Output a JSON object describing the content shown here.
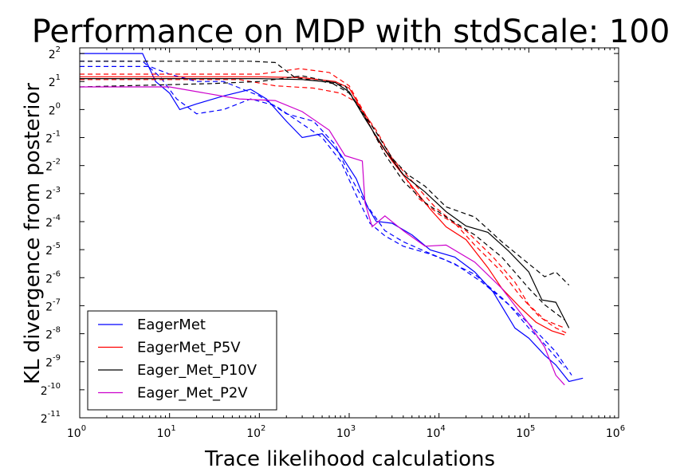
{
  "chart_data": {
    "type": "line",
    "title": "Performance on MDP with stdScale: 100",
    "xlabel": "Trace likelihood calculations",
    "ylabel": "KL divergence from posterior",
    "xscale": "log",
    "yscale": "log",
    "x_base": 10,
    "y_base": 2,
    "xlim": [
      1,
      1000000
    ],
    "ylim": [
      0.00048828125,
      4.6
    ],
    "x_ticks": [
      {
        "base": "10",
        "exp": "0",
        "value": 1
      },
      {
        "base": "10",
        "exp": "1",
        "value": 10
      },
      {
        "base": "10",
        "exp": "2",
        "value": 100
      },
      {
        "base": "10",
        "exp": "3",
        "value": 1000
      },
      {
        "base": "10",
        "exp": "4",
        "value": 10000
      },
      {
        "base": "10",
        "exp": "5",
        "value": 100000
      },
      {
        "base": "10",
        "exp": "6",
        "value": 1000000
      }
    ],
    "y_ticks": [
      {
        "base": "2",
        "exp": "-11",
        "value": 0.00048828125
      },
      {
        "base": "2",
        "exp": "-10",
        "value": 0.0009765625
      },
      {
        "base": "2",
        "exp": "-9",
        "value": 0.001953125
      },
      {
        "base": "2",
        "exp": "-8",
        "value": 0.00390625
      },
      {
        "base": "2",
        "exp": "-7",
        "value": 0.0078125
      },
      {
        "base": "2",
        "exp": "-6",
        "value": 0.015625
      },
      {
        "base": "2",
        "exp": "-5",
        "value": 0.03125
      },
      {
        "base": "2",
        "exp": "-4",
        "value": 0.0625
      },
      {
        "base": "2",
        "exp": "-3",
        "value": 0.125
      },
      {
        "base": "2",
        "exp": "-2",
        "value": 0.25
      },
      {
        "base": "2",
        "exp": "-1",
        "value": 0.5
      },
      {
        "base": "2",
        "exp": "0",
        "value": 1
      },
      {
        "base": "2",
        "exp": "1",
        "value": 2
      },
      {
        "base": "2",
        "exp": "2",
        "value": 4
      }
    ],
    "grid": false,
    "legend_position": "bottom-left",
    "series": [
      {
        "name": "EagerMet",
        "color": "#0000ff",
        "style": "solid",
        "points": [
          [
            1,
            4
          ],
          [
            5,
            4
          ],
          [
            7,
            2
          ],
          [
            10,
            1.5
          ],
          [
            13,
            1.0
          ],
          [
            20,
            1.15
          ],
          [
            40,
            1.4
          ],
          [
            80,
            1.65
          ],
          [
            120,
            1.3
          ],
          [
            200,
            0.75
          ],
          [
            300,
            0.5
          ],
          [
            500,
            0.55
          ],
          [
            800,
            0.33
          ],
          [
            1200,
            0.18
          ],
          [
            1600,
            0.09
          ],
          [
            2000,
            0.063
          ],
          [
            3000,
            0.06
          ],
          [
            5000,
            0.045
          ],
          [
            8000,
            0.031
          ],
          [
            15000,
            0.026
          ],
          [
            25000,
            0.018
          ],
          [
            40000,
            0.011
          ],
          [
            70000,
            0.0045
          ],
          [
            100000,
            0.0035
          ],
          [
            150000,
            0.0023
          ],
          [
            200000,
            0.0018
          ],
          [
            280000,
            0.0012
          ],
          [
            400000,
            0.0013
          ]
        ]
      },
      {
        "name": "",
        "color": "#0000ff",
        "style": "dashed",
        "points": [
          [
            1,
            3.3
          ],
          [
            5,
            3.3
          ],
          [
            8,
            2.2
          ],
          [
            12,
            1.3
          ],
          [
            20,
            0.9
          ],
          [
            40,
            1.0
          ],
          [
            80,
            1.3
          ],
          [
            150,
            1.1
          ],
          [
            300,
            0.7
          ],
          [
            500,
            0.5
          ],
          [
            800,
            0.28
          ],
          [
            1200,
            0.12
          ],
          [
            1700,
            0.06
          ],
          [
            2500,
            0.044
          ],
          [
            4000,
            0.034
          ],
          [
            8000,
            0.028
          ],
          [
            15000,
            0.022
          ],
          [
            30000,
            0.014
          ],
          [
            60000,
            0.008
          ],
          [
            100000,
            0.0045
          ],
          [
            150000,
            0.003
          ],
          [
            250000,
            0.0017
          ]
        ]
      },
      {
        "name": "",
        "color": "#0000ff",
        "style": "dashed",
        "points": [
          [
            1,
            2.9
          ],
          [
            6,
            2.9
          ],
          [
            10,
            2.4
          ],
          [
            20,
            2.0
          ],
          [
            40,
            2.0
          ],
          [
            100,
            1.4
          ],
          [
            200,
            0.9
          ],
          [
            400,
            0.75
          ],
          [
            700,
            0.42
          ],
          [
            1000,
            0.2
          ],
          [
            1500,
            0.1
          ],
          [
            2500,
            0.05
          ],
          [
            4000,
            0.038
          ],
          [
            7000,
            0.03
          ],
          [
            12000,
            0.024
          ],
          [
            25000,
            0.017
          ],
          [
            50000,
            0.0095
          ],
          [
            100000,
            0.005
          ],
          [
            200000,
            0.0025
          ],
          [
            300000,
            0.0014
          ]
        ]
      },
      {
        "name": "EagerMet_P5V",
        "color": "#ff0000",
        "style": "solid",
        "points": [
          [
            1,
            2.25
          ],
          [
            100,
            2.25
          ],
          [
            300,
            2.2
          ],
          [
            700,
            2.0
          ],
          [
            1000,
            1.7
          ],
          [
            1300,
            1.1
          ],
          [
            2000,
            0.5
          ],
          [
            3000,
            0.28
          ],
          [
            5000,
            0.15
          ],
          [
            8000,
            0.085
          ],
          [
            12000,
            0.055
          ],
          [
            20000,
            0.04
          ],
          [
            35000,
            0.02
          ],
          [
            50000,
            0.012
          ],
          [
            80000,
            0.0075
          ],
          [
            120000,
            0.0052
          ],
          [
            180000,
            0.0042
          ],
          [
            250000,
            0.0038
          ]
        ]
      },
      {
        "name": "",
        "color": "#ff0000",
        "style": "dashed",
        "points": [
          [
            1,
            2.4
          ],
          [
            100,
            2.4
          ],
          [
            280,
            2.75
          ],
          [
            600,
            2.5
          ],
          [
            1000,
            1.8
          ],
          [
            1500,
            0.9
          ],
          [
            2500,
            0.4
          ],
          [
            4000,
            0.2
          ],
          [
            6000,
            0.11
          ],
          [
            10000,
            0.075
          ],
          [
            20000,
            0.05
          ],
          [
            40000,
            0.026
          ],
          [
            70000,
            0.014
          ],
          [
            100000,
            0.008
          ],
          [
            150000,
            0.0055
          ],
          [
            250000,
            0.0045
          ]
        ]
      },
      {
        "name": "",
        "color": "#ff0000",
        "style": "dashed",
        "points": [
          [
            1,
            2.1
          ],
          [
            60,
            2.1
          ],
          [
            150,
            1.8
          ],
          [
            400,
            1.7
          ],
          [
            800,
            1.5
          ],
          [
            1200,
            1.2
          ],
          [
            2000,
            0.6
          ],
          [
            3000,
            0.3
          ],
          [
            5000,
            0.17
          ],
          [
            9000,
            0.09
          ],
          [
            15000,
            0.06
          ],
          [
            25000,
            0.035
          ],
          [
            50000,
            0.018
          ],
          [
            80000,
            0.01
          ],
          [
            130000,
            0.006
          ],
          [
            200000,
            0.0045
          ],
          [
            260000,
            0.004
          ]
        ]
      },
      {
        "name": "Eager_Met_P10V",
        "color": "#000000",
        "style": "solid",
        "points": [
          [
            1,
            2.15
          ],
          [
            100,
            2.15
          ],
          [
            300,
            2.1
          ],
          [
            700,
            1.95
          ],
          [
            1000,
            1.55
          ],
          [
            1500,
            0.8
          ],
          [
            2500,
            0.37
          ],
          [
            4000,
            0.2
          ],
          [
            7000,
            0.13
          ],
          [
            12000,
            0.08
          ],
          [
            20000,
            0.056
          ],
          [
            35000,
            0.048
          ],
          [
            60000,
            0.03
          ],
          [
            100000,
            0.018
          ],
          [
            140000,
            0.009
          ],
          [
            200000,
            0.0085
          ],
          [
            280000,
            0.0045
          ]
        ]
      },
      {
        "name": "",
        "color": "#000000",
        "style": "dashed",
        "points": [
          [
            1,
            3.3
          ],
          [
            80,
            3.3
          ],
          [
            150,
            3.2
          ],
          [
            250,
            2.2
          ],
          [
            500,
            2.0
          ],
          [
            900,
            1.8
          ],
          [
            1300,
            1.05
          ],
          [
            2000,
            0.57
          ],
          [
            3000,
            0.3
          ],
          [
            4500,
            0.2
          ],
          [
            7000,
            0.15
          ],
          [
            12000,
            0.09
          ],
          [
            25000,
            0.07
          ],
          [
            50000,
            0.038
          ],
          [
            100000,
            0.022
          ],
          [
            150000,
            0.016
          ],
          [
            200000,
            0.018
          ],
          [
            280000,
            0.013
          ]
        ]
      },
      {
        "name": "",
        "color": "#000000",
        "style": "dashed",
        "points": [
          [
            1,
            1.75
          ],
          [
            30,
            1.9
          ],
          [
            100,
            2.0
          ],
          [
            300,
            2.3
          ],
          [
            600,
            2.0
          ],
          [
            1000,
            1.5
          ],
          [
            1600,
            0.75
          ],
          [
            2500,
            0.33
          ],
          [
            4000,
            0.17
          ],
          [
            7000,
            0.1
          ],
          [
            12000,
            0.07
          ],
          [
            25000,
            0.045
          ],
          [
            50000,
            0.026
          ],
          [
            100000,
            0.012
          ],
          [
            150000,
            0.008
          ],
          [
            250000,
            0.0055
          ]
        ]
      },
      {
        "name": "Eager_Met_P2V",
        "color": "#cc00cc",
        "style": "solid",
        "points": [
          [
            1,
            1.75
          ],
          [
            10,
            1.75
          ],
          [
            25,
            1.5
          ],
          [
            60,
            1.3
          ],
          [
            150,
            1.25
          ],
          [
            300,
            0.95
          ],
          [
            600,
            0.6
          ],
          [
            900,
            0.32
          ],
          [
            1400,
            0.28
          ],
          [
            1500,
            0.1
          ],
          [
            1800,
            0.055
          ],
          [
            2500,
            0.072
          ],
          [
            4000,
            0.05
          ],
          [
            7000,
            0.034
          ],
          [
            12000,
            0.035
          ],
          [
            25000,
            0.023
          ],
          [
            50000,
            0.012
          ],
          [
            100000,
            0.005
          ],
          [
            150000,
            0.0028
          ],
          [
            200000,
            0.0014
          ],
          [
            250000,
            0.0011
          ]
        ]
      }
    ]
  }
}
